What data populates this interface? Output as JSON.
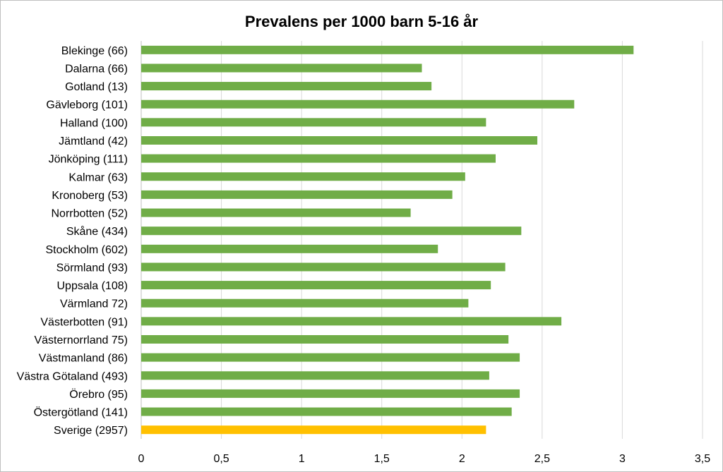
{
  "chart_data": {
    "type": "bar",
    "orientation": "horizontal",
    "title": "Prevalens per 1000 barn 5-16 år",
    "xlabel": "",
    "ylabel": "",
    "xlim": [
      0,
      3.5
    ],
    "grid": true,
    "x_ticks": [
      "0",
      "0,5",
      "1",
      "1,5",
      "2",
      "2,5",
      "3",
      "3,5"
    ],
    "tick_values": [
      0,
      0.5,
      1,
      1.5,
      2,
      2.5,
      3,
      3.5
    ],
    "categories": [
      "Blekinge (66)",
      "Dalarna (66)",
      "Gotland (13)",
      "Gävleborg (101)",
      "Halland (100)",
      "Jämtland (42)",
      "Jönköping (111)",
      "Kalmar (63)",
      "Kronoberg (53)",
      "Norrbotten (52)",
      "Skåne (434)",
      "Stockholm (602)",
      "Sörmland (93)",
      "Uppsala (108)",
      "Värmland 72)",
      "Västerbotten (91)",
      "Västernorrland 75)",
      "Västmanland (86)",
      "Västra Götaland (493)",
      "Örebro (95)",
      "Östergötland (141)",
      "Sverige (2957)"
    ],
    "values": [
      3.07,
      1.75,
      1.81,
      2.7,
      2.15,
      2.47,
      2.21,
      2.02,
      1.94,
      1.68,
      2.37,
      1.85,
      2.27,
      2.18,
      2.04,
      2.62,
      2.29,
      2.36,
      2.17,
      2.36,
      2.31,
      2.15
    ],
    "colors": {
      "default": "#70ad47",
      "highlight": "#ffc000",
      "highlight_category": "Sverige (2957)",
      "grid": "#d9d9d9",
      "axis": "#bfbfbf"
    }
  }
}
